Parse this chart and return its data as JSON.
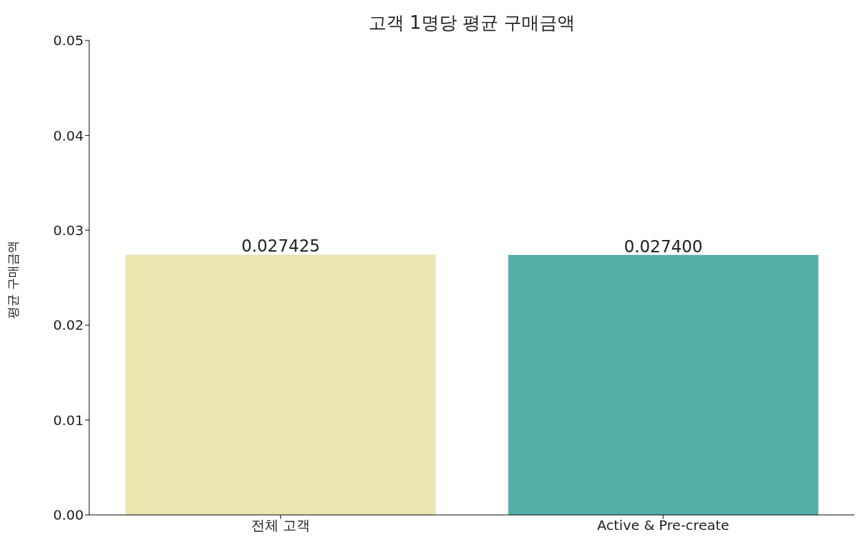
{
  "chart_data": {
    "type": "bar",
    "title": "고객 1명당 평균 구매금액",
    "ylabel": "평균 구매금액",
    "categories": [
      "전체 고객",
      "Active & Pre-create"
    ],
    "values": [
      0.027425,
      0.0274
    ],
    "colors": [
      "#ebe5b0",
      "#55afa8"
    ],
    "value_labels": [
      "0.027425",
      "0.027400"
    ],
    "ylim": [
      0,
      0.05
    ],
    "yticks": [
      {
        "value": 0,
        "label": "0.00"
      },
      {
        "value": 0.01,
        "label": "0.01"
      },
      {
        "value": 0.02,
        "label": "0.02"
      },
      {
        "value": 0.03,
        "label": "0.03"
      },
      {
        "value": 0.04,
        "label": "0.04"
      },
      {
        "value": 0.05,
        "label": "0.05"
      }
    ],
    "grid": false,
    "legend": false
  }
}
